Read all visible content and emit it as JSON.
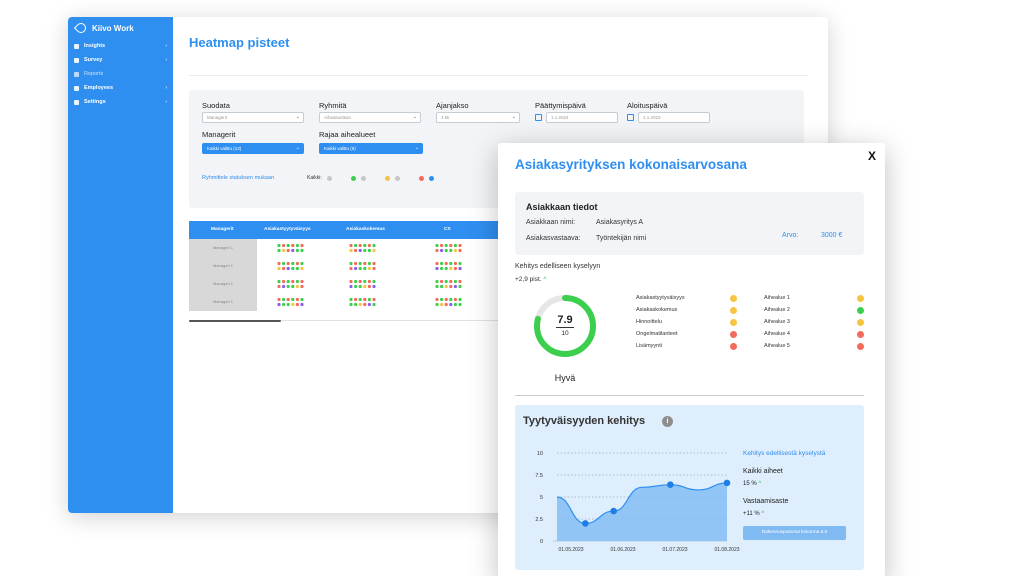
{
  "app": {
    "name": "Kiivo Work"
  },
  "sidebar": {
    "items": [
      {
        "label": "Insights",
        "chevron": "›"
      },
      {
        "label": "Survey",
        "chevron": "›"
      },
      {
        "label": "Reports",
        "chevron": ""
      },
      {
        "label": "Employees",
        "chevron": "›"
      },
      {
        "label": "Settings",
        "chevron": "›"
      }
    ]
  },
  "page": {
    "title": "Heatmap pisteet"
  },
  "filters": {
    "suodata": {
      "label": "Suodata",
      "value": "Managerit"
    },
    "ryhmita": {
      "label": "Ryhmitä",
      "value": "Aihealueittain"
    },
    "ajanjakso": {
      "label": "Ajanjakso",
      "value": "3 kk"
    },
    "paattymispaiva": {
      "label": "Päättymispäivä",
      "value": "1.1.2024"
    },
    "aloituspaiva": {
      "label": "Aloituspäivä",
      "value": "1.1.2023"
    },
    "managerit": {
      "label": "Managerit",
      "value": "Kaikki valittu (13)"
    },
    "rajaa": {
      "label": "Rajaa aihealueet",
      "value": "Kaikki valittu (9)"
    },
    "group_link": "Ryhmittele statuksen mukaan",
    "kaikki": "Kaikki:"
  },
  "table": {
    "headers": [
      "Managerit",
      "Asiakastyytyväisyys",
      "Asiakaskokemus",
      "CX"
    ],
    "rows": [
      "Manageri 1",
      "Manageri 1",
      "Manageri 1",
      "Manageri 1"
    ]
  },
  "modal": {
    "title": "Asiakasyrityksen kokonaisarvosana",
    "close": "X",
    "info": {
      "heading": "Asiakkaan tiedot",
      "name_label": "Asiakkaan nimi:",
      "name_value": "Asiakasyritys A",
      "rep_label": "Asiakasvastaava:",
      "rep_value": "Työntekijän nimi",
      "value_label": "Arvo:",
      "value": "3000 €"
    },
    "development": {
      "label": "Kehitys edelliseen kyselyyn",
      "value": "+2,9 pist.",
      "arrow": "^"
    },
    "score": {
      "value": "7.9",
      "max": "10",
      "word": "Hyvä",
      "fraction": 0.79
    },
    "metrics_left": [
      {
        "label": "Asiakastyytyväisyys",
        "color": "#f5c542"
      },
      {
        "label": "Asiakaskokemus",
        "color": "#f5c542"
      },
      {
        "label": "Hinnoittelu",
        "color": "#f5c542"
      },
      {
        "label": "Ongelmatilanteet",
        "color": "#f36b5b"
      },
      {
        "label": "Lisämyynti",
        "color": "#f36b5b"
      }
    ],
    "metrics_right": [
      {
        "label": "Aihealue 1",
        "color": "#f5c542"
      },
      {
        "label": "Aihealue 2",
        "color": "#3ccf4e"
      },
      {
        "label": "Aihealue 3",
        "color": "#f5c542"
      },
      {
        "label": "Aihealue 4",
        "color": "#f36b5b"
      },
      {
        "label": "Aihealue 5",
        "color": "#f36b5b"
      }
    ],
    "chart_box": {
      "title": "Tyytyväisyyden kehitys",
      "info_icon": "i",
      "side_link": "Kehitys edellisestä kyselystä",
      "all_label": "Kaikki aiheet",
      "all_value": "15 %",
      "resp_label": "Vastaamisaste",
      "resp_value": "+11 %",
      "up_arrow": "^",
      "button": "Rakennuspalvelut kokonna 6.0"
    }
  },
  "chart_data": {
    "type": "area",
    "x": [
      "01.05.2023",
      "15.05.2023",
      "01.06.2023",
      "15.06.2023",
      "01.07.2023",
      "15.07.2023",
      "01.08.2023"
    ],
    "values": [
      5.0,
      2.0,
      3.4,
      6.1,
      6.4,
      5.8,
      6.6
    ],
    "markers": [
      1,
      2,
      4,
      6
    ],
    "xticks": [
      "01.05.2023",
      "01.06.2023",
      "01.07.2023",
      "01.08.2023"
    ],
    "yticks": [
      "0",
      "2.5",
      "5",
      "7.5",
      "10"
    ],
    "ylim": [
      0,
      10
    ],
    "grid": true,
    "colors": {
      "fill": "#82bdf3",
      "line": "#2f8ff0",
      "marker": "#1f7fe6"
    }
  },
  "colors": {
    "accent": "#2f8ff0",
    "green": "#3ccf4e",
    "yellow": "#f5c542",
    "red": "#f36b5b",
    "grey": "#c7c7c7"
  }
}
